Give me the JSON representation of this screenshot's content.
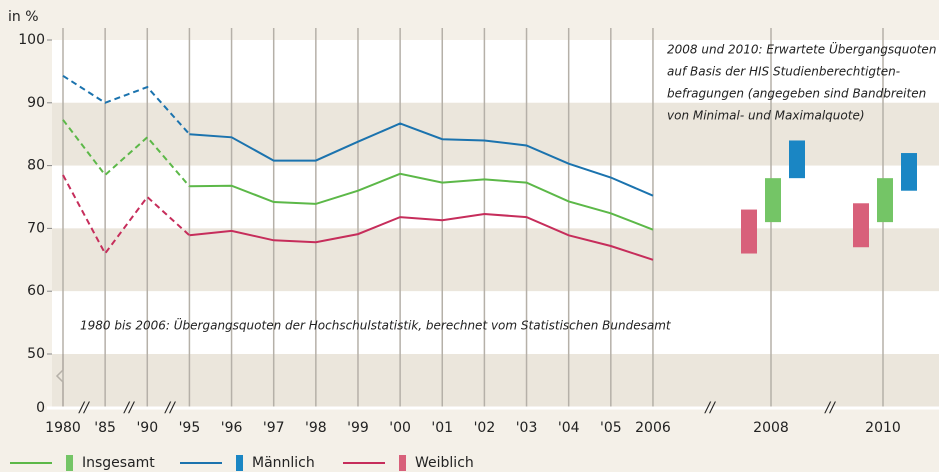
{
  "chart_data": {
    "type": "line",
    "y_axis_label": "in %",
    "categories": [
      "1980",
      "'85",
      "'90",
      "'95",
      "'96",
      "'97",
      "'98",
      "'99",
      "'00",
      "'01",
      "'02",
      "'03",
      "'04",
      "'05",
      "2006",
      "2008",
      "2010"
    ],
    "dashed_until": "'95",
    "ylim": [
      0,
      100
    ],
    "axis_break": [
      0,
      50
    ],
    "yticks": [
      0,
      50,
      60,
      70,
      80,
      90,
      100
    ],
    "series": [
      {
        "name": "Insgesamt",
        "color": "#5cb848",
        "bar_color": "#74c566",
        "values": [
          87.3,
          78.5,
          84.5,
          76.7,
          76.8,
          74.2,
          73.9,
          76.0,
          78.7,
          77.3,
          77.8,
          77.3,
          74.3,
          72.4,
          69.8,
          null,
          null
        ],
        "low": [
          null,
          null,
          null,
          null,
          null,
          null,
          null,
          null,
          null,
          null,
          null,
          null,
          null,
          null,
          null,
          71,
          71
        ],
        "high": [
          null,
          null,
          null,
          null,
          null,
          null,
          null,
          null,
          null,
          null,
          null,
          null,
          null,
          null,
          null,
          78,
          78
        ]
      },
      {
        "name": "Männlich",
        "color": "#1b73ae",
        "bar_color": "#1a86c4",
        "values": [
          94.3,
          90.0,
          92.5,
          85.0,
          84.5,
          80.8,
          80.8,
          83.8,
          86.7,
          84.2,
          84.0,
          83.2,
          80.3,
          78.1,
          75.2,
          null,
          null
        ],
        "low": [
          null,
          null,
          null,
          null,
          null,
          null,
          null,
          null,
          null,
          null,
          null,
          null,
          null,
          null,
          null,
          78,
          76
        ],
        "high": [
          null,
          null,
          null,
          null,
          null,
          null,
          null,
          null,
          null,
          null,
          null,
          null,
          null,
          null,
          null,
          84,
          82
        ]
      },
      {
        "name": "Weiblich",
        "color": "#c62d5b",
        "bar_color": "#d8607a",
        "values": [
          78.5,
          66.0,
          75.0,
          68.9,
          69.6,
          68.1,
          67.8,
          69.1,
          71.8,
          71.3,
          72.3,
          71.8,
          68.9,
          67.2,
          65.0,
          null,
          null
        ],
        "low": [
          null,
          null,
          null,
          null,
          null,
          null,
          null,
          null,
          null,
          null,
          null,
          null,
          null,
          null,
          null,
          66,
          67
        ],
        "high": [
          null,
          null,
          null,
          null,
          null,
          null,
          null,
          null,
          null,
          null,
          null,
          null,
          null,
          null,
          null,
          73,
          74
        ]
      }
    ],
    "annotations": [
      {
        "lines": [
          "1980 bis 2006: Übergangsquoten der Hochschulstatistik, berechnet vom Statistischen Bundesamt"
        ]
      },
      {
        "lines": [
          "2008 und 2010: Erwartete Übergangsquoten",
          "auf Basis der HIS Studienberechtigten-",
          "befragungen (angegeben sind Bandbreiten",
          "von Minimal- und Maximalquote)"
        ]
      }
    ]
  }
}
